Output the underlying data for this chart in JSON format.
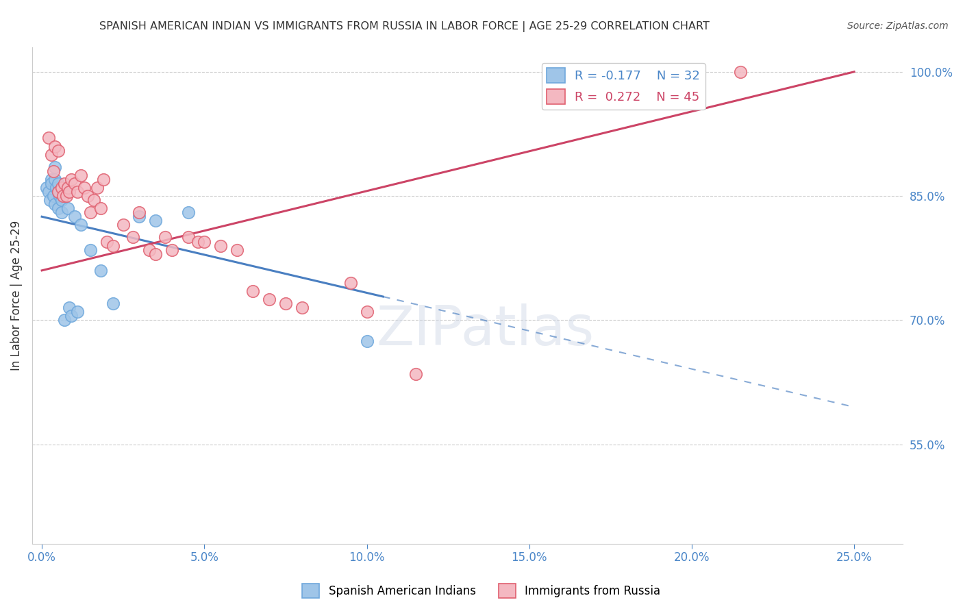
{
  "title": "SPANISH AMERICAN INDIAN VS IMMIGRANTS FROM RUSSIA IN LABOR FORCE | AGE 25-29 CORRELATION CHART",
  "source": "Source: ZipAtlas.com",
  "xlabel_ticks": [
    "0.0%",
    "5.0%",
    "10.0%",
    "15.0%",
    "20.0%",
    "25.0%"
  ],
  "xlabel_values": [
    0.0,
    5.0,
    10.0,
    15.0,
    20.0,
    25.0
  ],
  "ylabel": "In Labor Force | Age 25-29",
  "ylabel_right_ticks": [
    "100.0%",
    "85.0%",
    "70.0%",
    "55.0%"
  ],
  "ylabel_right_values": [
    100.0,
    85.0,
    70.0,
    55.0
  ],
  "ylim": [
    43.0,
    103.0
  ],
  "xlim": [
    -0.3,
    26.5
  ],
  "blue_label": "Spanish American Indians",
  "pink_label": "Immigrants from Russia",
  "blue_R": -0.177,
  "blue_N": 32,
  "pink_R": 0.272,
  "pink_N": 45,
  "blue_color": "#9fc5e8",
  "pink_color": "#f4b8c1",
  "blue_edge_color": "#6fa8dc",
  "pink_edge_color": "#e06070",
  "blue_line_color": "#4a7fc1",
  "pink_line_color": "#cc4466",
  "watermark": "ZIPatlas",
  "blue_line_x0": 0.0,
  "blue_line_y0": 82.5,
  "blue_line_x1": 25.0,
  "blue_line_y1": 59.5,
  "blue_solid_end_x": 10.5,
  "pink_line_x0": 0.0,
  "pink_line_y0": 76.0,
  "pink_line_x1": 25.0,
  "pink_line_y1": 100.0,
  "blue_scatter_x": [
    0.15,
    0.2,
    0.25,
    0.3,
    0.3,
    0.35,
    0.4,
    0.4,
    0.4,
    0.45,
    0.5,
    0.5,
    0.5,
    0.55,
    0.6,
    0.6,
    0.65,
    0.7,
    0.7,
    0.8,
    0.85,
    0.9,
    1.0,
    1.1,
    1.2,
    1.5,
    1.8,
    2.2,
    3.0,
    3.5,
    4.5,
    10.0
  ],
  "blue_scatter_y": [
    86.0,
    85.5,
    84.5,
    87.0,
    86.5,
    85.0,
    88.5,
    87.0,
    84.0,
    86.0,
    85.5,
    83.5,
    86.5,
    85.0,
    84.5,
    83.0,
    86.0,
    85.5,
    70.0,
    83.5,
    71.5,
    70.5,
    82.5,
    71.0,
    81.5,
    78.5,
    76.0,
    72.0,
    82.5,
    82.0,
    83.0,
    67.5
  ],
  "pink_scatter_x": [
    0.2,
    0.3,
    0.35,
    0.4,
    0.5,
    0.5,
    0.6,
    0.65,
    0.7,
    0.75,
    0.8,
    0.85,
    0.9,
    1.0,
    1.1,
    1.2,
    1.3,
    1.4,
    1.5,
    1.6,
    1.7,
    1.8,
    1.9,
    2.0,
    2.2,
    2.5,
    2.8,
    3.0,
    3.3,
    3.5,
    3.8,
    4.0,
    4.5,
    4.8,
    5.0,
    5.5,
    6.0,
    6.5,
    7.0,
    7.5,
    8.0,
    9.5,
    10.0,
    11.5,
    21.5
  ],
  "pink_scatter_y": [
    92.0,
    90.0,
    88.0,
    91.0,
    90.5,
    85.5,
    86.0,
    85.0,
    86.5,
    85.0,
    86.0,
    85.5,
    87.0,
    86.5,
    85.5,
    87.5,
    86.0,
    85.0,
    83.0,
    84.5,
    86.0,
    83.5,
    87.0,
    79.5,
    79.0,
    81.5,
    80.0,
    83.0,
    78.5,
    78.0,
    80.0,
    78.5,
    80.0,
    79.5,
    79.5,
    79.0,
    78.5,
    73.5,
    72.5,
    72.0,
    71.5,
    74.5,
    71.0,
    63.5,
    100.0
  ]
}
